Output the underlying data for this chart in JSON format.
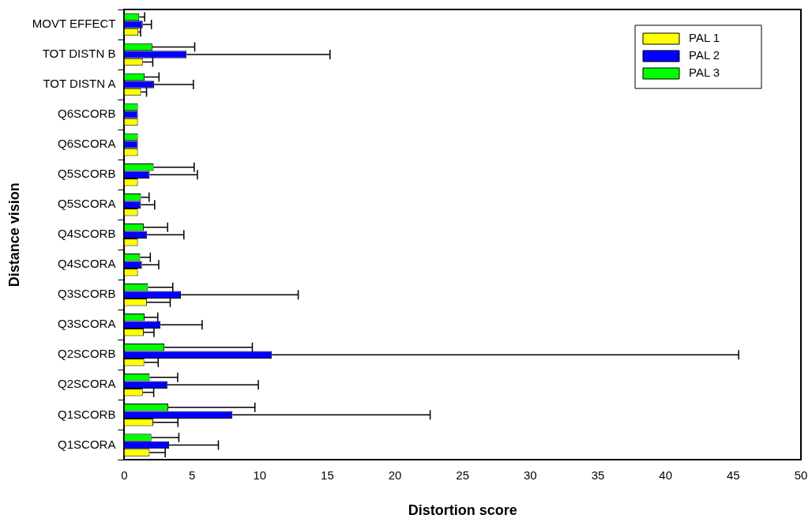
{
  "chart_data": {
    "type": "bar",
    "orientation": "horizontal",
    "xlabel": "Distortion score",
    "ylabel": "Distance vision",
    "categories": [
      "MOVT EFFECT",
      "TOT DISTN B",
      "TOT DISTN A",
      "Q6SCORB",
      "Q6SCORA",
      "Q5SCORB",
      "Q5SCORA",
      "Q4SCORB",
      "Q4SCORA",
      "Q3SCORB",
      "Q3SCORA",
      "Q2SCORB",
      "Q2SCORA",
      "Q1SCORB",
      "Q1SCORA"
    ],
    "series": [
      {
        "name": "PAL 1",
        "color": "#ffff00",
        "values": [
          1.04,
          1.36,
          1.23,
          1.0,
          1.0,
          1.0,
          1.0,
          1.0,
          1.0,
          1.66,
          1.43,
          1.47,
          1.36,
          2.13,
          1.87
        ],
        "errors": [
          [
            1.04,
            1.2
          ],
          [
            1.36,
            2.1
          ],
          [
            1.23,
            1.64
          ],
          null,
          null,
          null,
          null,
          null,
          null,
          [
            1.66,
            3.39
          ],
          [
            1.43,
            2.19
          ],
          [
            1.47,
            2.5
          ],
          [
            1.36,
            2.17
          ],
          [
            2.13,
            3.96
          ],
          [
            1.87,
            3.02
          ]
        ]
      },
      {
        "name": "PAL 2",
        "color": "#0000ff",
        "values": [
          1.36,
          4.6,
          2.19,
          1.0,
          1.0,
          1.87,
          1.23,
          1.68,
          1.3,
          4.18,
          2.67,
          10.9,
          3.18,
          7.99,
          3.3
        ],
        "errors": [
          [
            1.36,
            2.0
          ],
          [
            4.6,
            15.2
          ],
          [
            2.19,
            5.1
          ],
          null,
          null,
          [
            1.87,
            5.4
          ],
          [
            1.23,
            2.24
          ],
          [
            1.68,
            4.4
          ],
          [
            1.3,
            2.54
          ],
          [
            4.18,
            12.85
          ],
          [
            2.67,
            5.75
          ],
          [
            10.9,
            45.4
          ],
          [
            3.18,
            9.9
          ],
          [
            7.99,
            22.6
          ],
          [
            3.3,
            6.95
          ]
        ]
      },
      {
        "name": "PAL 3",
        "color": "#00ff00",
        "values": [
          1.1,
          2.07,
          1.5,
          1.0,
          1.0,
          2.17,
          1.23,
          1.43,
          1.17,
          1.75,
          1.49,
          2.96,
          1.87,
          3.24,
          2.0
        ],
        "errors": [
          [
            1.1,
            1.5
          ],
          [
            2.07,
            5.2
          ],
          [
            1.5,
            2.56
          ],
          null,
          null,
          [
            2.17,
            5.16
          ],
          [
            1.23,
            1.83
          ],
          [
            1.43,
            3.2
          ],
          [
            1.17,
            1.92
          ],
          [
            1.75,
            3.58
          ],
          [
            1.49,
            2.47
          ],
          [
            2.96,
            9.46
          ],
          [
            1.87,
            3.94
          ],
          [
            3.24,
            9.65
          ],
          [
            2.0,
            4.03
          ]
        ]
      }
    ],
    "xlim": [
      0,
      50
    ],
    "xticks": [
      0,
      5,
      10,
      15,
      20,
      25,
      30,
      35,
      40,
      45,
      50
    ],
    "grid": false,
    "legend": "top right"
  }
}
